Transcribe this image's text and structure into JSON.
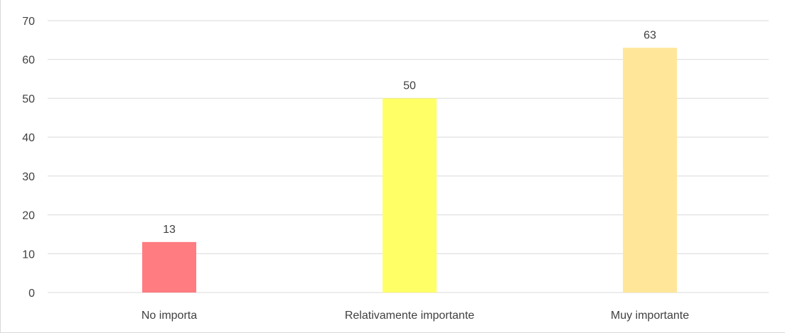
{
  "chart_data": {
    "type": "bar",
    "title": "",
    "xlabel": "",
    "ylabel": "",
    "categories": [
      "No importa",
      "Relativamente importante",
      "Muy importante"
    ],
    "values": [
      13,
      50,
      63
    ],
    "data_labels": [
      "13",
      "50",
      "63"
    ],
    "bar_colors": [
      "#ff7c80",
      "#ffff66",
      "#ffe699"
    ],
    "ylim": [
      0,
      70
    ],
    "yticks": [
      0,
      10,
      20,
      30,
      40,
      50,
      60,
      70
    ],
    "ytick_labels": [
      "0",
      "10",
      "20",
      "30",
      "40",
      "50",
      "60",
      "70"
    ],
    "grid": true,
    "gridline_color": "#d9d9d9",
    "legend": "none"
  }
}
